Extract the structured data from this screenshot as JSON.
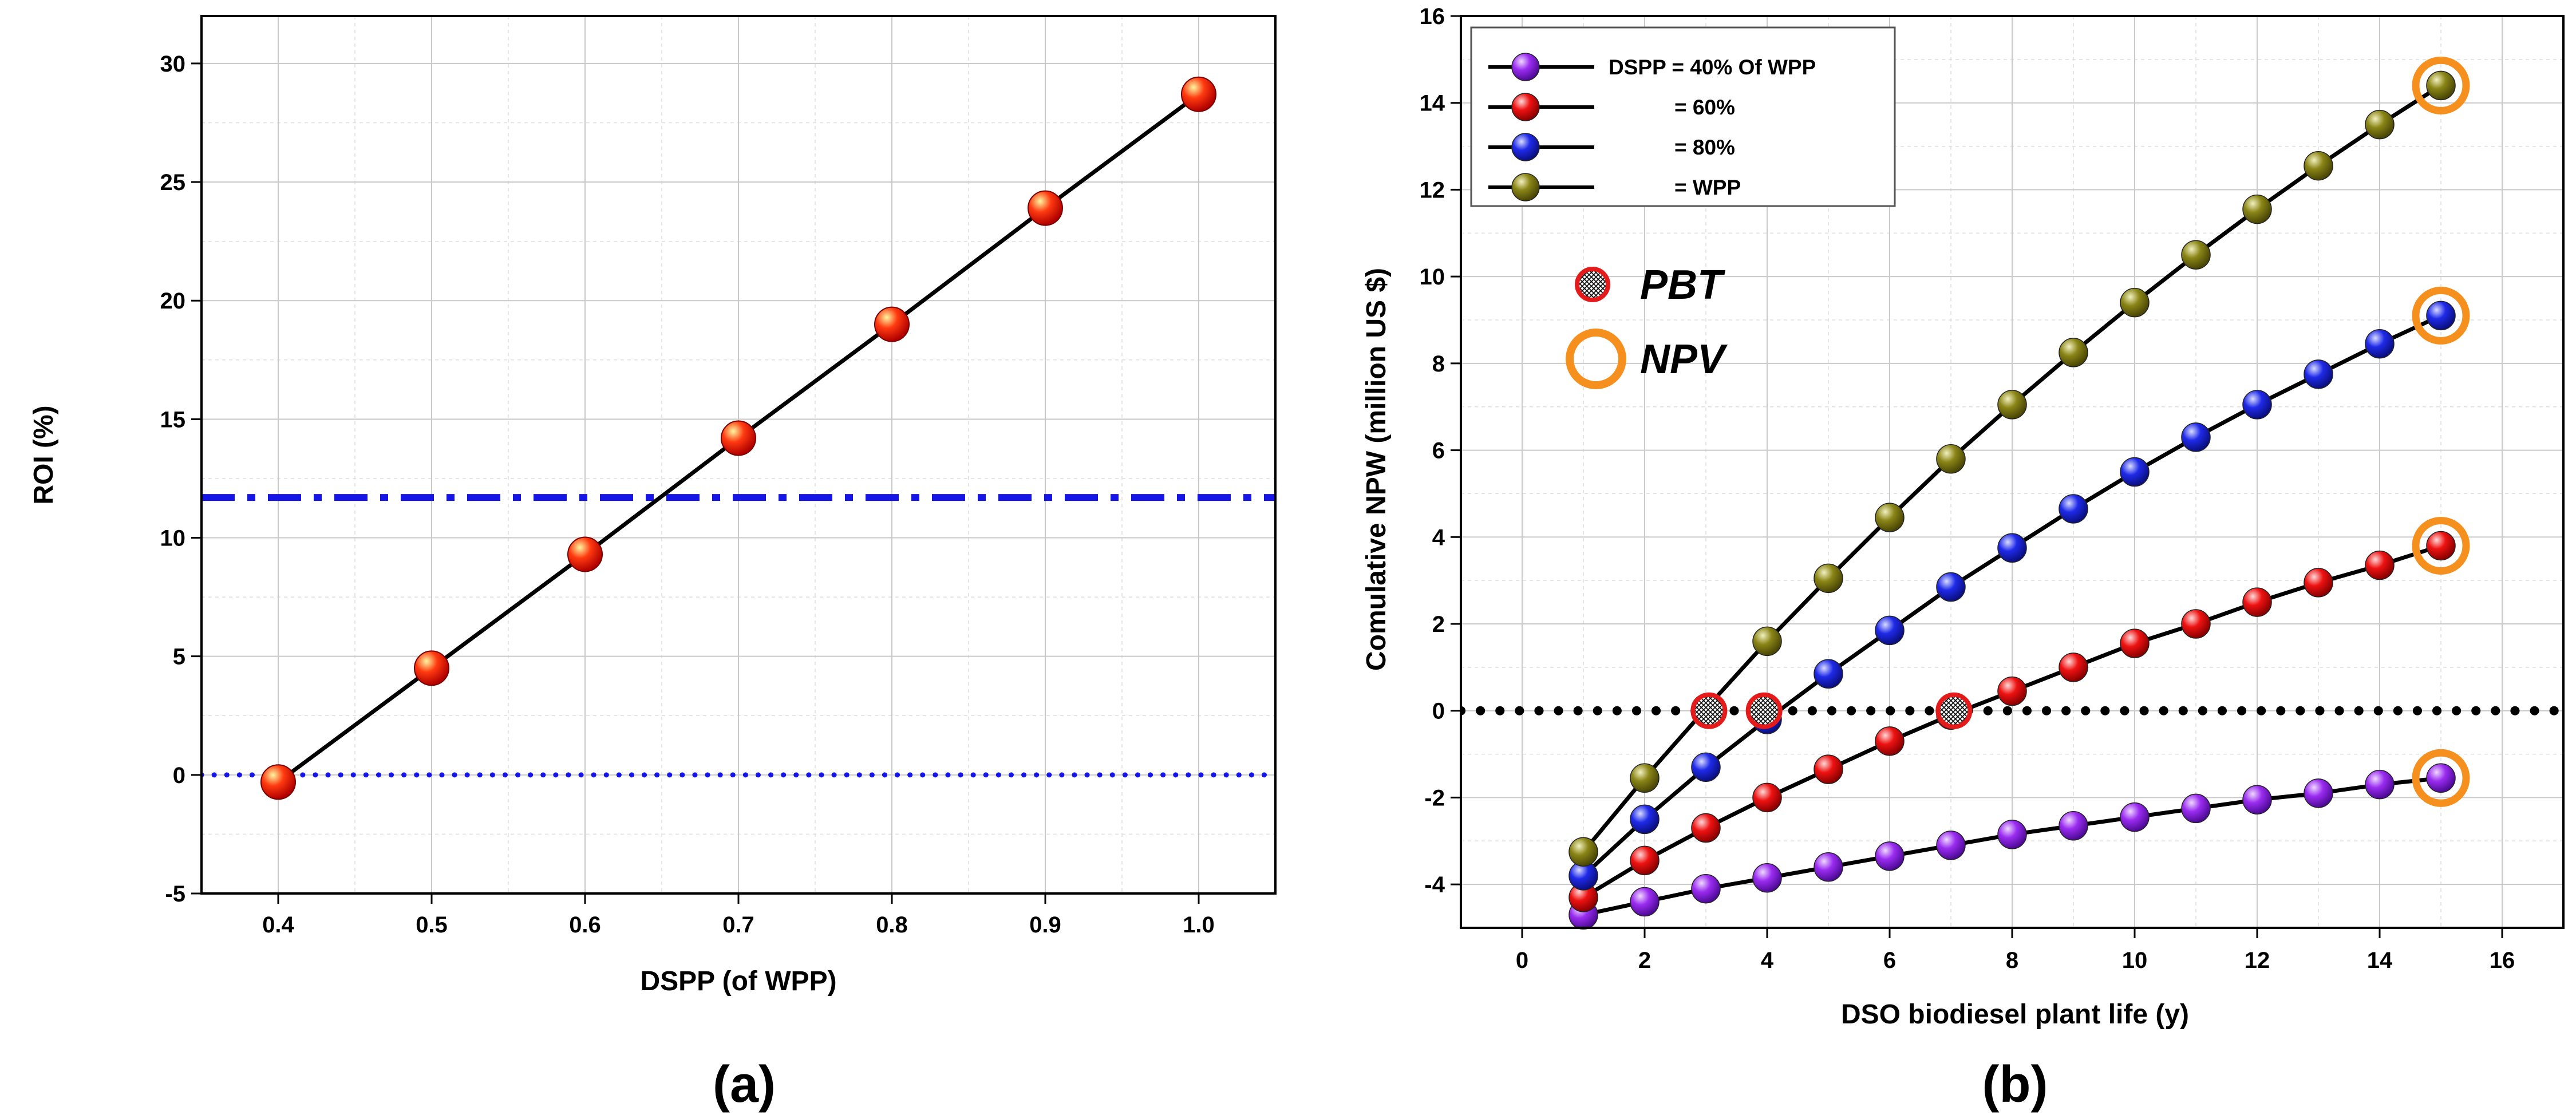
{
  "colors": {
    "purple": "#8c1ee0",
    "red": "#e30a0a",
    "blue": "#1f2ae8",
    "olive": "#858014",
    "orange": "#f5901e",
    "ref_blue": "#1515e6",
    "pbt_red": "#e31b1b"
  },
  "chart_data": [
    {
      "type": "line",
      "panel_label": "(a)",
      "xlabel": "DSPP (of WPP)",
      "ylabel": "ROI (%)",
      "xlim": [
        0.35,
        1.05
      ],
      "ylim": [
        -5,
        32
      ],
      "xticks": [
        0.4,
        0.5,
        0.6,
        0.7,
        0.8,
        0.9,
        1.0
      ],
      "xtick_labels": [
        "0.4",
        "0.5",
        "0.6",
        "0.7",
        "0.8",
        "0.9",
        "1.0"
      ],
      "yticks": [
        -5,
        0,
        5,
        10,
        15,
        20,
        25,
        30
      ],
      "ytick_labels": [
        "-5",
        "0",
        "5",
        "10",
        "15",
        "20",
        "25",
        "30"
      ],
      "grid": true,
      "series": [
        {
          "name": "ROI",
          "x": [
            0.4,
            0.5,
            0.6,
            0.7,
            0.8,
            0.9,
            1.0
          ],
          "values": [
            -0.3,
            4.5,
            9.3,
            14.2,
            19.0,
            23.9,
            28.7
          ]
        }
      ],
      "reference_lines": [
        {
          "name": "dash-dot",
          "y": 11.7,
          "style": "dashdot"
        },
        {
          "name": "zero-dotted",
          "y": 0,
          "style": "dotted"
        }
      ]
    },
    {
      "type": "line",
      "panel_label": "(b)",
      "xlabel": "DSO biodiesel plant life (y)",
      "ylabel": "Comulative NPW (million US $)",
      "xlim": [
        -1,
        17
      ],
      "ylim": [
        -5,
        16
      ],
      "xticks": [
        0,
        2,
        4,
        6,
        8,
        10,
        12,
        14,
        16
      ],
      "xtick_labels": [
        "0",
        "2",
        "4",
        "6",
        "8",
        "10",
        "12",
        "14",
        "16"
      ],
      "yticks": [
        -4,
        -2,
        0,
        2,
        4,
        6,
        8,
        10,
        12,
        14,
        16
      ],
      "ytick_labels": [
        "-4",
        "-2",
        "0",
        "2",
        "4",
        "6",
        "8",
        "10",
        "12",
        "14",
        "16"
      ],
      "grid": true,
      "x": [
        1,
        2,
        3,
        4,
        5,
        6,
        7,
        8,
        9,
        10,
        11,
        12,
        13,
        14,
        15
      ],
      "series": [
        {
          "name": "DSPP = 40% Of WPP",
          "legend": "DSPP = 40% Of WPP",
          "color_key": "purple",
          "values": [
            -4.7,
            -4.4,
            -4.1,
            -3.85,
            -3.6,
            -3.35,
            -3.1,
            -2.85,
            -2.65,
            -2.45,
            -2.25,
            -2.05,
            -1.9,
            -1.7,
            -1.55
          ]
        },
        {
          "name": "60%",
          "legend": "= 60%",
          "color_key": "red",
          "values": [
            -4.3,
            -3.45,
            -2.7,
            -2.0,
            -1.35,
            -0.7,
            -0.1,
            0.45,
            1.0,
            1.55,
            2.0,
            2.5,
            2.95,
            3.35,
            3.8
          ]
        },
        {
          "name": "80%",
          "legend": "= 80%",
          "color_key": "blue",
          "values": [
            -3.8,
            -2.5,
            -1.3,
            -0.2,
            0.85,
            1.85,
            2.85,
            3.75,
            4.65,
            5.5,
            6.3,
            7.05,
            7.75,
            8.45,
            9.1
          ]
        },
        {
          "name": "WPP",
          "legend": "= WPP",
          "color_key": "olive",
          "values": [
            -3.25,
            -1.55,
            0.05,
            1.6,
            3.05,
            4.45,
            5.8,
            7.05,
            8.25,
            9.4,
            10.5,
            11.55,
            12.55,
            13.5,
            14.4
          ]
        }
      ],
      "pbt_points": [
        {
          "x": 3.05,
          "y": 0
        },
        {
          "x": 3.95,
          "y": 0
        },
        {
          "x": 7.05,
          "y": 0
        }
      ],
      "npv_points": [
        {
          "x": 15,
          "y": 14.4
        },
        {
          "x": 15,
          "y": 9.1
        },
        {
          "x": 15,
          "y": 3.8
        },
        {
          "x": 15,
          "y": -1.55
        }
      ],
      "zero_line": {
        "y": 0,
        "style": "dotted"
      },
      "annotations": {
        "pbt": "PBT",
        "npv": "NPV"
      }
    }
  ]
}
